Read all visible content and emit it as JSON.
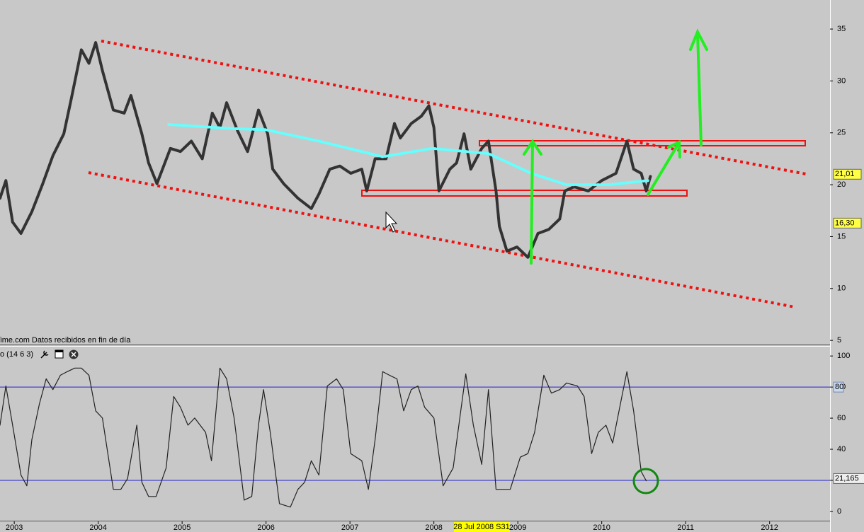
{
  "chart_data": [
    {
      "type": "line",
      "source": "Time.com Datos recibidos en fin de día",
      "xlim": [
        2002.83,
        2012.72
      ],
      "ylim": [
        4.6,
        37.8
      ],
      "yticks": [
        5,
        10,
        15,
        20,
        25,
        30,
        35
      ],
      "series": [
        {
          "color": "#333333",
          "style": "solid",
          "x": [
            2002.83,
            2002.9,
            2002.98,
            2003.08,
            2003.21,
            2003.34,
            2003.46,
            2003.59,
            2003.68,
            2003.8,
            2003.89,
            2003.97,
            2004.05,
            2004.18,
            2004.31,
            2004.39,
            2004.52,
            2004.6,
            2004.7,
            2004.86,
            2004.98,
            2005.11,
            2005.24,
            2005.36,
            2005.45,
            2005.53,
            2005.66,
            2005.78,
            2005.91,
            2006.02,
            2006.08,
            2006.21,
            2006.38,
            2006.54,
            2006.63,
            2006.76,
            2006.88,
            2007.01,
            2007.14,
            2007.2,
            2007.3,
            2007.43,
            2007.53,
            2007.6,
            2007.73,
            2007.85,
            2007.94,
            2008.0,
            2008.06,
            2008.19,
            2008.27,
            2008.36,
            2008.44,
            2008.57,
            2008.65,
            2008.74,
            2008.78,
            2008.87,
            2008.99,
            2009.12,
            2009.24,
            2009.37,
            2009.5,
            2009.56,
            2009.67,
            2009.84,
            2010.0,
            2010.17,
            2010.3,
            2010.38,
            2010.47,
            2010.53,
            2010.58
          ],
          "values": [
            18.7,
            20.4,
            16.4,
            15.3,
            17.4,
            20.1,
            22.8,
            24.9,
            28.3,
            33.0,
            31.7,
            33.7,
            31.0,
            27.2,
            26.9,
            28.6,
            24.9,
            22.1,
            20.1,
            23.5,
            23.2,
            24.2,
            22.5,
            26.9,
            25.5,
            27.9,
            25.2,
            23.2,
            27.2,
            24.9,
            21.5,
            20.1,
            18.7,
            17.7,
            19.1,
            21.5,
            21.8,
            21.1,
            21.5,
            19.4,
            22.5,
            22.5,
            25.9,
            24.5,
            25.9,
            26.6,
            27.6,
            25.5,
            19.4,
            21.5,
            22.1,
            24.9,
            21.5,
            23.5,
            24.2,
            19.4,
            16.0,
            13.6,
            14.0,
            13.0,
            15.3,
            15.7,
            16.7,
            19.4,
            19.8,
            19.4,
            20.4,
            21.1,
            24.2,
            21.5,
            21.1,
            19.4,
            20.8
          ]
        },
        {
          "color": "#66ffff",
          "style": "dotted",
          "x": [
            2004.84,
            2005.62,
            2006.0,
            2006.63,
            2007.39,
            2007.98,
            2008.65,
            2009.16,
            2009.58,
            2010.09,
            2010.55
          ],
          "values": [
            25.8,
            25.4,
            25.3,
            24.2,
            22.7,
            23.5,
            23.0,
            21.1,
            20.0,
            20.0,
            20.4
          ]
        }
      ],
      "price_labels": [
        {
          "value": 21.01,
          "label": "21,01"
        },
        {
          "value": 16.3,
          "label": "16,30"
        }
      ]
    },
    {
      "type": "line",
      "title": "o (14 6 3)",
      "cursor_label": "28 Jul 2008 S31",
      "xlim": [
        2002.83,
        2012.72
      ],
      "xticks": [
        2003,
        2004,
        2005,
        2006,
        2007,
        2008,
        2009,
        2010,
        2011,
        2012
      ],
      "ylim": [
        -6.4,
        106
      ],
      "yticks": [
        0,
        20,
        40,
        60,
        80,
        100
      ],
      "levels": [
        {
          "value": 80,
          "label": "80"
        },
        {
          "value": 20
        }
      ],
      "price_labels": [
        {
          "value": 21.165,
          "label": "21,165"
        }
      ],
      "series": [
        {
          "color": "#222222",
          "style": "thin",
          "x": [
            2002.83,
            2002.9,
            2002.98,
            2003.08,
            2003.15,
            2003.21,
            2003.3,
            2003.38,
            2003.46,
            2003.55,
            2003.63,
            2003.72,
            2003.8,
            2003.89,
            2003.97,
            2004.05,
            2004.18,
            2004.27,
            2004.35,
            2004.46,
            2004.52,
            2004.6,
            2004.69,
            2004.81,
            2004.9,
            2004.98,
            2005.07,
            2005.15,
            2005.28,
            2005.35,
            2005.45,
            2005.53,
            2005.62,
            2005.74,
            2005.83,
            2005.91,
            2005.97,
            2006.05,
            2006.16,
            2006.29,
            2006.38,
            2006.46,
            2006.54,
            2006.63,
            2006.73,
            2006.84,
            2006.92,
            2007.01,
            2007.14,
            2007.22,
            2007.3,
            2007.39,
            2007.47,
            2007.56,
            2007.64,
            2007.73,
            2007.81,
            2007.89,
            2008.0,
            2008.11,
            2008.23,
            2008.32,
            2008.38,
            2008.47,
            2008.57,
            2008.65,
            2008.74,
            2008.91,
            2009.03,
            2009.12,
            2009.2,
            2009.31,
            2009.4,
            2009.5,
            2009.58,
            2009.71,
            2009.79,
            2009.88,
            2009.96,
            2010.05,
            2010.13,
            2010.24,
            2010.3,
            2010.38,
            2010.47,
            2010.53
          ],
          "values": [
            55.5,
            80.7,
            55.5,
            23.4,
            16.5,
            46.3,
            69.3,
            85.3,
            78.4,
            87.6,
            89.9,
            92.2,
            92.2,
            87.6,
            64.7,
            60.1,
            14.2,
            14.2,
            21.1,
            55.5,
            18.8,
            9.6,
            9.6,
            28.0,
            73.9,
            67.0,
            55.5,
            60.1,
            50.9,
            32.6,
            92.2,
            85.3,
            60.1,
            7.3,
            9.6,
            55.5,
            78.4,
            50.9,
            5.0,
            2.8,
            14.2,
            18.8,
            32.6,
            23.4,
            80.7,
            85.3,
            78.4,
            37.2,
            32.6,
            14.2,
            46.3,
            89.9,
            87.6,
            85.3,
            64.7,
            78.4,
            80.7,
            67.0,
            60.1,
            16.5,
            28.0,
            64.7,
            88.5,
            55.5,
            30.3,
            78.4,
            14.2,
            14.2,
            34.9,
            37.2,
            50.9,
            87.6,
            76.1,
            78.4,
            82.6,
            80.7,
            73.9,
            37.2,
            50.9,
            55.5,
            44.0,
            73.9,
            89.9,
            64.7,
            25.7,
            19.7
          ]
        }
      ]
    }
  ]
}
